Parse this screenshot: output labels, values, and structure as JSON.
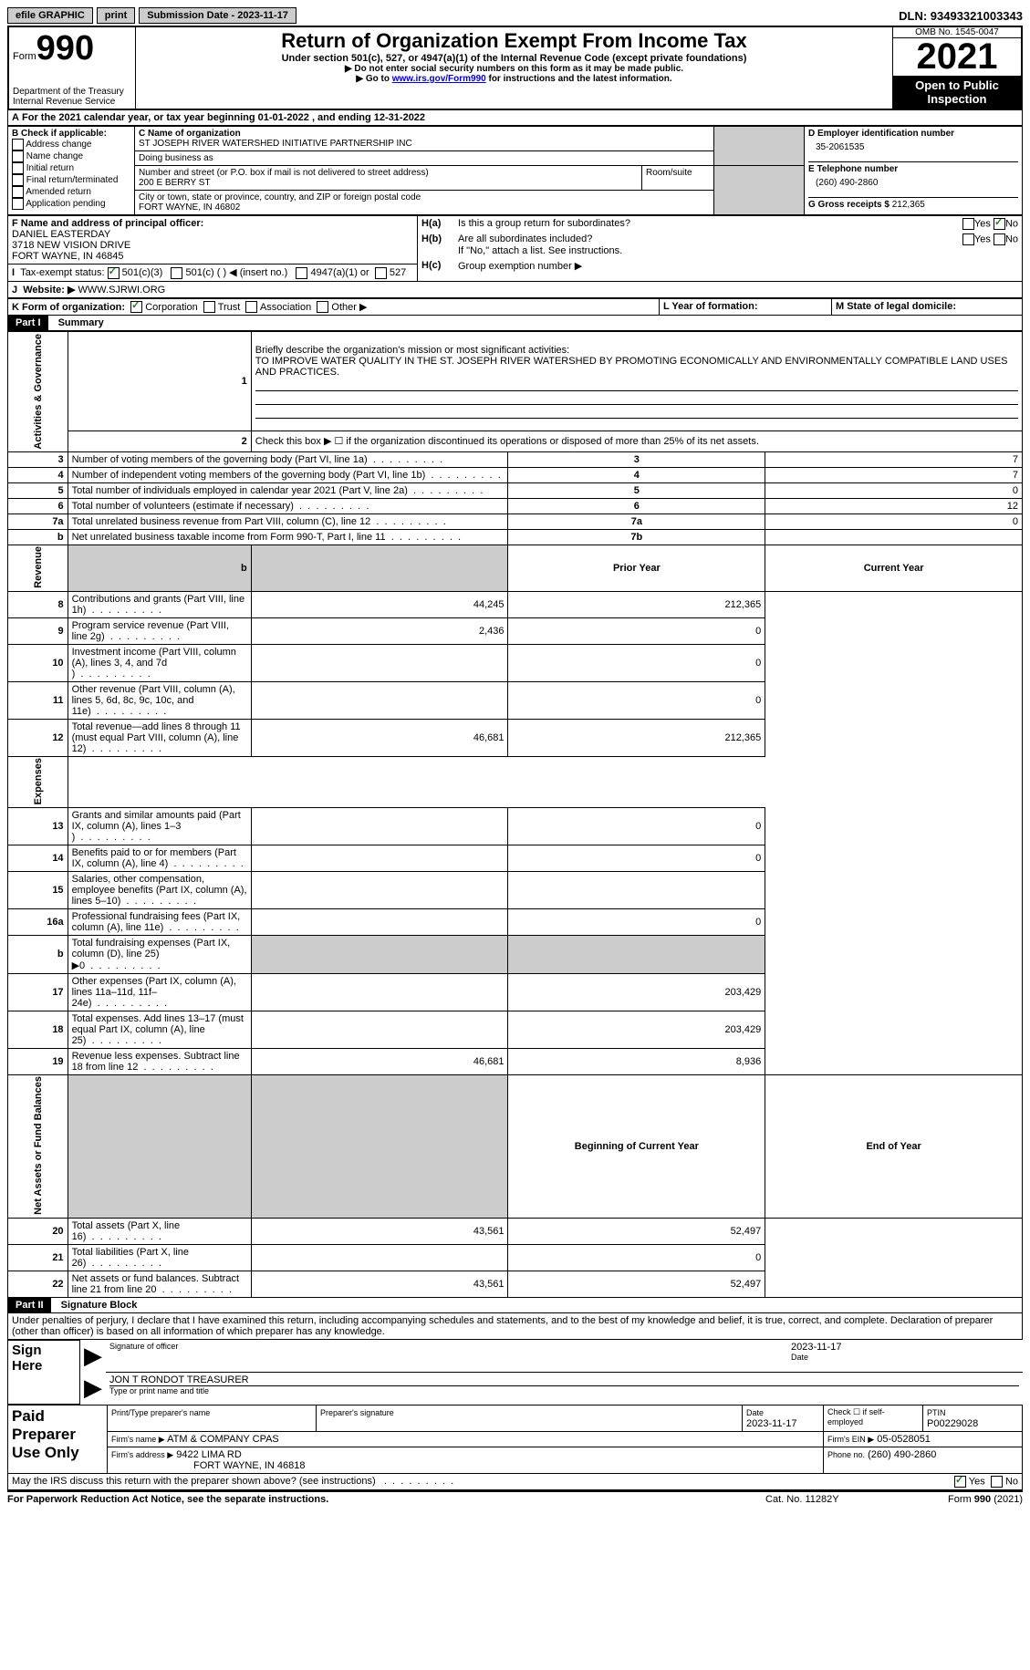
{
  "topbar": {
    "efile": "efile GRAPHIC",
    "print": "print",
    "submission": "Submission Date - 2023-11-17",
    "dln": "DLN: 93493321003343"
  },
  "header": {
    "form_label": "Form",
    "form_num": "990",
    "dept": "Department of the Treasury",
    "irs": "Internal Revenue Service",
    "title": "Return of Organization Exempt From Income Tax",
    "subtitle": "Under section 501(c), 527, or 4947(a)(1) of the Internal Revenue Code (except private foundations)",
    "note1": "▶ Do not enter social security numbers on this form as it may be made public.",
    "note2_pre": "▶ Go to ",
    "note2_link": "www.irs.gov/Form990",
    "note2_post": " for instructions and the latest information.",
    "omb": "OMB No. 1545-0047",
    "year": "2021",
    "open": "Open to Public Inspection"
  },
  "sectionA": {
    "period": "For the 2021 calendar year, or tax year beginning 01-01-2022  , and ending 12-31-2022",
    "b_label": "B Check if applicable:",
    "b_items": [
      "Address change",
      "Name change",
      "Initial return",
      "Final return/terminated",
      "Amended return",
      "Application pending"
    ],
    "c_label": "C Name of organization",
    "org_name": "ST JOSEPH RIVER WATERSHED INITIATIVE PARTNERSHIP INC",
    "dba_label": "Doing business as",
    "addr_label": "Number and street (or P.O. box if mail is not delivered to street address)",
    "room_label": "Room/suite",
    "addr": "200 E BERRY ST",
    "city_label": "City or town, state or province, country, and ZIP or foreign postal code",
    "city": "FORT WAYNE, IN  46802",
    "d_label": "D Employer identification number",
    "ein": "35-2061535",
    "e_label": "E Telephone number",
    "phone": "(260) 490-2860",
    "g_label": "G Gross receipts $",
    "g_val": "212,365",
    "f_label": "F Name and address of principal officer:",
    "f_name": "DANIEL EASTERDAY",
    "f_addr1": "3718 NEW VISION DRIVE",
    "f_addr2": "FORT WAYNE, IN  46845",
    "ha": "Is this a group return for subordinates?",
    "hb": "Are all subordinates included?",
    "hb_note": "If \"No,\" attach a list. See instructions.",
    "hc": "Group exemption number ▶",
    "i_label": "Tax-exempt status:",
    "i_501c3": "501(c)(3)",
    "i_501c": "501(c) (   ) ◀ (insert no.)",
    "i_4947": "4947(a)(1) or",
    "i_527": "527",
    "j_label": "Website: ▶",
    "j_val": "WWW.SJRWI.ORG",
    "k_label": "K Form of organization:",
    "k_corp": "Corporation",
    "k_trust": "Trust",
    "k_assoc": "Association",
    "k_other": "Other ▶",
    "l_label": "L Year of formation:",
    "m_label": "M State of legal domicile:"
  },
  "part1": {
    "title": "Part I",
    "subtitle": "Summary",
    "line1_label": "Briefly describe the organization's mission or most significant activities:",
    "line1_text": "TO IMPROVE WATER QUALITY IN THE ST. JOSEPH RIVER WATERSHED BY PROMOTING ECONOMICALLY AND ENVIRONMENTALLY COMPATIBLE LAND USES AND PRACTICES.",
    "line2": "Check this box ▶ ☐ if the organization discontinued its operations or disposed of more than 25% of its net assets.",
    "side_activities": "Activities & Governance",
    "side_revenue": "Revenue",
    "side_expenses": "Expenses",
    "side_netassets": "Net Assets or Fund Balances",
    "rows_ag": [
      {
        "n": "3",
        "t": "Number of voting members of the governing body (Part VI, line 1a)",
        "box": "3",
        "v": "7"
      },
      {
        "n": "4",
        "t": "Number of independent voting members of the governing body (Part VI, line 1b)",
        "box": "4",
        "v": "7"
      },
      {
        "n": "5",
        "t": "Total number of individuals employed in calendar year 2021 (Part V, line 2a)",
        "box": "5",
        "v": "0"
      },
      {
        "n": "6",
        "t": "Total number of volunteers (estimate if necessary)",
        "box": "6",
        "v": "12"
      },
      {
        "n": "7a",
        "t": "Total unrelated business revenue from Part VIII, column (C), line 12",
        "box": "7a",
        "v": "0"
      },
      {
        "n": "b",
        "t": "Net unrelated business taxable income from Form 990-T, Part I, line 11",
        "box": "7b",
        "v": ""
      }
    ],
    "col_prior": "Prior Year",
    "col_current": "Current Year",
    "rows_rev": [
      {
        "n": "8",
        "t": "Contributions and grants (Part VIII, line 1h)",
        "p": "44,245",
        "c": "212,365"
      },
      {
        "n": "9",
        "t": "Program service revenue (Part VIII, line 2g)",
        "p": "2,436",
        "c": "0"
      },
      {
        "n": "10",
        "t": "Investment income (Part VIII, column (A), lines 3, 4, and 7d )",
        "p": "",
        "c": "0"
      },
      {
        "n": "11",
        "t": "Other revenue (Part VIII, column (A), lines 5, 6d, 8c, 9c, 10c, and 11e)",
        "p": "",
        "c": "0"
      },
      {
        "n": "12",
        "t": "Total revenue—add lines 8 through 11 (must equal Part VIII, column (A), line 12)",
        "p": "46,681",
        "c": "212,365"
      }
    ],
    "rows_exp": [
      {
        "n": "13",
        "t": "Grants and similar amounts paid (Part IX, column (A), lines 1–3 )",
        "p": "",
        "c": "0"
      },
      {
        "n": "14",
        "t": "Benefits paid to or for members (Part IX, column (A), line 4)",
        "p": "",
        "c": "0"
      },
      {
        "n": "15",
        "t": "Salaries, other compensation, employee benefits (Part IX, column (A), lines 5–10)",
        "p": "",
        "c": ""
      },
      {
        "n": "16a",
        "t": "Professional fundraising fees (Part IX, column (A), line 11e)",
        "p": "",
        "c": "0"
      },
      {
        "n": "b",
        "t": "Total fundraising expenses (Part IX, column (D), line 25) ▶0",
        "p": "GRAY",
        "c": "GRAY"
      },
      {
        "n": "17",
        "t": "Other expenses (Part IX, column (A), lines 11a–11d, 11f–24e)",
        "p": "",
        "c": "203,429"
      },
      {
        "n": "18",
        "t": "Total expenses. Add lines 13–17 (must equal Part IX, column (A), line 25)",
        "p": "",
        "c": "203,429"
      },
      {
        "n": "19",
        "t": "Revenue less expenses. Subtract line 18 from line 12",
        "p": "46,681",
        "c": "8,936"
      }
    ],
    "col_begin": "Beginning of Current Year",
    "col_end": "End of Year",
    "rows_net": [
      {
        "n": "20",
        "t": "Total assets (Part X, line 16)",
        "p": "43,561",
        "c": "52,497"
      },
      {
        "n": "21",
        "t": "Total liabilities (Part X, line 26)",
        "p": "",
        "c": "0"
      },
      {
        "n": "22",
        "t": "Net assets or fund balances. Subtract line 21 from line 20",
        "p": "43,561",
        "c": "52,497"
      }
    ]
  },
  "part2": {
    "title": "Part II",
    "subtitle": "Signature Block",
    "perjury": "Under penalties of perjury, I declare that I have examined this return, including accompanying schedules and statements, and to the best of my knowledge and belief, it is true, correct, and complete. Declaration of preparer (other than officer) is based on all information of which preparer has any knowledge.",
    "sign_here": "Sign Here",
    "sig_officer": "Signature of officer",
    "sig_date": "2023-11-17",
    "date_label": "Date",
    "officer_name": "JON T RONDOT  TREASURER",
    "type_name": "Type or print name and title",
    "paid_prep": "Paid Preparer Use Only",
    "prep_name_label": "Print/Type preparer's name",
    "prep_sig_label": "Preparer's signature",
    "prep_date_label": "Date",
    "prep_date": "2023-11-17",
    "check_self": "Check ☐ if self-employed",
    "ptin_label": "PTIN",
    "ptin": "P00229028",
    "firm_name_label": "Firm's name    ▶",
    "firm_name": "ATM & COMPANY CPAS",
    "firm_ein_label": "Firm's EIN ▶",
    "firm_ein": "05-0528051",
    "firm_addr_label": "Firm's address ▶",
    "firm_addr": "9422 LIMA RD",
    "firm_city": "FORT WAYNE, IN  46818",
    "phone_label": "Phone no.",
    "phone": "(260) 490-2860",
    "discuss": "May the IRS discuss this return with the preparer shown above? (see instructions)",
    "yes": "Yes",
    "no": "No"
  },
  "footer": {
    "pra": "For Paperwork Reduction Act Notice, see the separate instructions.",
    "cat": "Cat. No. 11282Y",
    "form": "Form 990 (2021)"
  }
}
